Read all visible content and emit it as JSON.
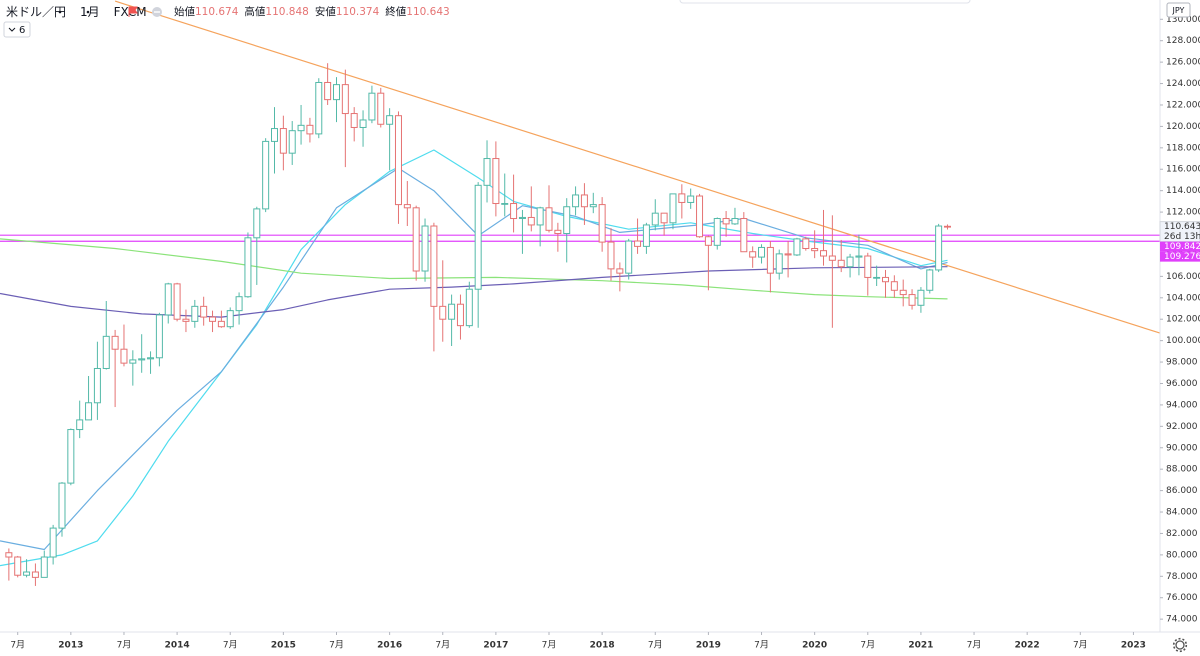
{
  "header": {
    "symbol": "米ドル／円",
    "timeframe": "1月",
    "source": "FXCM",
    "ohlc_labels": [
      "始値",
      "高値",
      "安値",
      "終値"
    ],
    "indicator_count": 6
  },
  "chart_data": {
    "type": "candlestick",
    "currency": "JPY",
    "up_color": "#53b9a8",
    "down_color": "#e57373",
    "categories": [
      "2012-06",
      "2012-07",
      "2012-08",
      "2012-09",
      "2012-10",
      "2012-11",
      "2012-12",
      "2013-01",
      "2013-02",
      "2013-03",
      "2013-04",
      "2013-05",
      "2013-06",
      "2013-07",
      "2013-08",
      "2013-09",
      "2013-10",
      "2013-11",
      "2013-12",
      "2014-01",
      "2014-02",
      "2014-03",
      "2014-04",
      "2014-05",
      "2014-06",
      "2014-07",
      "2014-08",
      "2014-09",
      "2014-10",
      "2014-11",
      "2014-12",
      "2015-01",
      "2015-02",
      "2015-03",
      "2015-04",
      "2015-05",
      "2015-06",
      "2015-07",
      "2015-08",
      "2015-09",
      "2015-10",
      "2015-11",
      "2015-12",
      "2016-01",
      "2016-02",
      "2016-03",
      "2016-04",
      "2016-05",
      "2016-06",
      "2016-07",
      "2016-08",
      "2016-09",
      "2016-10",
      "2016-11",
      "2016-12",
      "2017-01",
      "2017-02",
      "2017-03",
      "2017-04",
      "2017-05",
      "2017-06",
      "2017-07",
      "2017-08",
      "2017-09",
      "2017-10",
      "2017-11",
      "2017-12",
      "2018-01",
      "2018-02",
      "2018-03",
      "2018-04",
      "2018-05",
      "2018-06",
      "2018-07",
      "2018-08",
      "2018-09",
      "2018-10",
      "2018-11",
      "2018-12",
      "2019-01",
      "2019-02",
      "2019-03",
      "2019-04",
      "2019-05",
      "2019-06",
      "2019-07",
      "2019-08",
      "2019-09",
      "2019-10",
      "2019-11",
      "2019-12",
      "2020-01",
      "2020-02",
      "2020-03",
      "2020-04",
      "2020-05",
      "2020-06",
      "2020-07",
      "2020-08",
      "2020-09",
      "2020-10",
      "2020-11",
      "2020-12",
      "2021-01",
      "2021-02",
      "2021-03",
      "2021-04"
    ],
    "open": [
      80.2,
      79.8,
      78.1,
      78.4,
      77.9,
      79.8,
      82.5,
      86.7,
      91.7,
      92.6,
      94.2,
      97.4,
      100.4,
      99.2,
      97.9,
      98.2,
      98.3,
      98.4,
      102.4,
      105.3,
      102.0,
      101.8,
      103.2,
      102.2,
      101.8,
      101.3,
      102.8,
      104.1,
      109.6,
      112.3,
      118.6,
      119.8,
      117.5,
      119.6,
      120.1,
      119.3,
      124.1,
      122.5,
      123.9,
      121.2,
      119.9,
      120.6,
      123.1,
      120.2,
      121.0,
      112.7,
      112.4,
      106.5,
      110.7,
      103.2,
      102.0,
      103.4,
      101.4,
      104.8,
      114.5,
      117.0,
      112.8,
      112.8,
      111.4,
      111.5,
      110.8,
      112.4,
      110.3,
      110.0,
      112.5,
      113.6,
      112.5,
      112.7,
      109.2,
      106.7,
      106.3,
      109.3,
      108.8,
      110.8,
      111.9,
      111.0,
      113.7,
      112.9,
      113.5,
      109.7,
      108.9,
      111.4,
      110.9,
      111.4,
      108.3,
      107.8,
      108.7,
      106.3,
      108.1,
      108.0,
      109.5,
      108.6,
      108.4,
      107.9,
      107.5,
      106.9,
      107.8,
      107.9,
      105.9,
      105.9,
      105.5,
      104.7,
      104.3,
      103.3,
      104.7,
      106.6,
      110.674
    ],
    "high": [
      80.6,
      79.9,
      79.6,
      79.2,
      80.4,
      82.8,
      86.8,
      91.8,
      94.4,
      96.7,
      99.9,
      103.7,
      101.0,
      101.5,
      99.1,
      100.6,
      99.0,
      102.6,
      105.4,
      105.4,
      102.9,
      103.8,
      104.1,
      102.8,
      102.8,
      103.1,
      104.5,
      110.1,
      112.5,
      118.9,
      121.8,
      121.0,
      120.5,
      122.0,
      120.8,
      124.5,
      125.9,
      124.6,
      125.3,
      121.8,
      121.5,
      123.8,
      123.6,
      121.7,
      121.4,
      114.9,
      112.6,
      111.4,
      111.0,
      107.5,
      104.3,
      104.3,
      105.5,
      114.8,
      118.7,
      118.6,
      115.6,
      115.5,
      112.2,
      114.4,
      112.5,
      114.5,
      111.0,
      113.3,
      114.4,
      114.7,
      113.8,
      113.4,
      110.5,
      107.3,
      109.5,
      111.4,
      111.0,
      113.2,
      111.9,
      113.7,
      114.6,
      114.2,
      113.7,
      109.8,
      111.5,
      112.1,
      112.4,
      112.0,
      108.8,
      109.0,
      109.3,
      108.5,
      109.3,
      109.6,
      109.7,
      110.3,
      112.2,
      111.7,
      109.4,
      108.1,
      109.9,
      108.2,
      107.0,
      106.6,
      106.1,
      105.7,
      104.8,
      105.0,
      106.7,
      110.9,
      110.848
    ],
    "low": [
      77.6,
      77.9,
      77.9,
      77.1,
      77.9,
      79.1,
      81.7,
      86.5,
      90.9,
      92.6,
      92.6,
      97.3,
      93.8,
      97.6,
      95.8,
      97.0,
      96.9,
      97.6,
      101.6,
      101.8,
      100.8,
      101.2,
      101.4,
      100.8,
      101.2,
      101.1,
      101.5,
      104.0,
      105.2,
      112.0,
      115.6,
      115.9,
      116.4,
      118.3,
      118.5,
      118.9,
      122.0,
      120.4,
      116.2,
      118.6,
      118.1,
      120.3,
      119.9,
      115.9,
      110.9,
      110.7,
      105.6,
      105.5,
      99.0,
      99.9,
      99.5,
      100.1,
      101.2,
      101.2,
      112.9,
      111.6,
      111.6,
      110.1,
      108.1,
      110.2,
      108.8,
      110.1,
      108.3,
      107.3,
      111.7,
      110.8,
      111.9,
      108.3,
      105.6,
      104.6,
      105.7,
      108.1,
      108.1,
      110.3,
      109.8,
      110.4,
      111.4,
      112.3,
      109.6,
      104.7,
      108.5,
      109.7,
      110.8,
      108.3,
      106.8,
      107.2,
      104.5,
      105.7,
      105.9,
      107.9,
      108.4,
      107.7,
      107.0,
      101.2,
      106.4,
      105.9,
      106.1,
      104.2,
      105.1,
      104.0,
      104.0,
      103.2,
      102.9,
      102.6,
      104.4,
      106.4,
      110.374
    ],
    "close": [
      79.8,
      78.1,
      78.4,
      77.9,
      79.8,
      82.5,
      86.7,
      91.7,
      92.6,
      94.2,
      97.4,
      100.4,
      99.2,
      97.9,
      98.2,
      98.3,
      98.4,
      102.4,
      105.3,
      102.0,
      101.8,
      103.2,
      102.2,
      101.8,
      101.3,
      102.8,
      104.1,
      109.6,
      112.3,
      118.6,
      119.8,
      117.5,
      119.6,
      120.1,
      119.3,
      124.1,
      122.5,
      123.9,
      121.2,
      119.9,
      120.6,
      123.1,
      120.2,
      121.0,
      112.7,
      112.4,
      106.5,
      110.7,
      103.2,
      102.0,
      103.4,
      101.4,
      104.8,
      114.5,
      117.0,
      112.8,
      112.8,
      111.4,
      111.5,
      110.8,
      112.4,
      110.3,
      110.0,
      112.5,
      113.6,
      112.5,
      112.7,
      109.2,
      106.7,
      106.3,
      109.3,
      108.8,
      110.8,
      111.9,
      111.0,
      113.7,
      112.9,
      113.5,
      109.7,
      108.9,
      111.4,
      110.9,
      111.4,
      108.3,
      107.8,
      108.7,
      106.3,
      108.1,
      108.0,
      109.5,
      108.6,
      108.4,
      107.9,
      107.5,
      106.9,
      107.8,
      107.9,
      105.9,
      105.9,
      105.5,
      104.7,
      104.3,
      103.3,
      104.7,
      106.6,
      110.7,
      110.643
    ],
    "lines": [
      {
        "color": "#4fdcee",
        "x": [
          "2012-05",
          "2012-12",
          "2013-04",
          "2013-08",
          "2013-12",
          "2014-06",
          "2014-10",
          "2015-03",
          "2015-08",
          "2016-01",
          "2016-06",
          "2016-11",
          "2017-03",
          "2017-09",
          "2018-04",
          "2018-11",
          "2019-06",
          "2019-12",
          "2020-07",
          "2021-01",
          "2021-04"
        ],
        "values": [
          79.0,
          80.0,
          81.3,
          85.5,
          90.6,
          97.1,
          101.5,
          108.5,
          112.7,
          115.8,
          117.8,
          115.2,
          113.0,
          111.6,
          110.4,
          111.0,
          110.0,
          109.3,
          108.6,
          107.0,
          107.5
        ]
      },
      {
        "color": "#6aaee0",
        "x": [
          "2012-05",
          "2012-10",
          "2013-04",
          "2014-01",
          "2014-06",
          "2015-01",
          "2015-07",
          "2016-02",
          "2016-06",
          "2016-11",
          "2017-04",
          "2017-10",
          "2018-03",
          "2018-12",
          "2019-05",
          "2019-12",
          "2020-07",
          "2021-01",
          "2021-04"
        ],
        "values": [
          81.3,
          80.5,
          86.0,
          93.5,
          97.1,
          105.0,
          112.4,
          116.1,
          114.0,
          109.8,
          112.6,
          111.6,
          110.1,
          110.8,
          111.4,
          109.6,
          108.9,
          106.7,
          107.3
        ]
      },
      {
        "color": "#8be37a",
        "x": [
          "2012-05",
          "2013-06",
          "2014-06",
          "2015-03",
          "2016-01",
          "2017-01",
          "2018-01",
          "2018-10",
          "2019-06",
          "2020-01",
          "2020-07",
          "2021-04"
        ],
        "values": [
          109.5,
          108.6,
          107.4,
          106.3,
          105.8,
          105.9,
          105.6,
          105.2,
          104.7,
          104.3,
          104.1,
          103.9
        ]
      },
      {
        "color": "#6b5fb5",
        "x": [
          "2012-05",
          "2013-01",
          "2013-09",
          "2014-06",
          "2015-01",
          "2015-06",
          "2016-01",
          "2016-08",
          "2017-03",
          "2018-01",
          "2019-01",
          "2020-01",
          "2021-04"
        ],
        "values": [
          104.4,
          103.2,
          102.5,
          102.2,
          102.9,
          103.8,
          104.8,
          105.0,
          105.3,
          105.9,
          106.5,
          106.8,
          106.9
        ]
      }
    ],
    "trendline": {
      "color": "#f5a35c",
      "x": [
        "2013-06",
        "2023-04"
      ],
      "values": [
        131.7,
        100.7
      ]
    },
    "hlines": {
      "color": "#e040fb",
      "values": [
        109.842,
        109.276
      ]
    },
    "countdown": "26d 13h",
    "xlim": [
      "2012-05",
      "2023-04"
    ],
    "xticks": [
      {
        "value": "2012-07",
        "label": "7月"
      },
      {
        "value": "2013-01",
        "label": "2013"
      },
      {
        "value": "2013-07",
        "label": "7月"
      },
      {
        "value": "2014-01",
        "label": "2014"
      },
      {
        "value": "2014-07",
        "label": "7月"
      },
      {
        "value": "2015-01",
        "label": "2015"
      },
      {
        "value": "2015-07",
        "label": "7月"
      },
      {
        "value": "2016-01",
        "label": "2016"
      },
      {
        "value": "2016-07",
        "label": "7月"
      },
      {
        "value": "2017-01",
        "label": "2017"
      },
      {
        "value": "2017-07",
        "label": "7月"
      },
      {
        "value": "2018-01",
        "label": "2018"
      },
      {
        "value": "2018-07",
        "label": "7月"
      },
      {
        "value": "2019-01",
        "label": "2019"
      },
      {
        "value": "2019-07",
        "label": "7月"
      },
      {
        "value": "2020-01",
        "label": "2020"
      },
      {
        "value": "2020-07",
        "label": "7月"
      },
      {
        "value": "2021-01",
        "label": "2021"
      },
      {
        "value": "2021-07",
        "label": "7月"
      },
      {
        "value": "2022-01",
        "label": "2022"
      },
      {
        "value": "2022-07",
        "label": "7月"
      },
      {
        "value": "2023-01",
        "label": "2023"
      }
    ],
    "ylim": [
      72.8,
      131.8
    ],
    "yticks": [
      {
        "value": 130,
        "label": "130.000"
      },
      {
        "value": 128,
        "label": "128.000"
      },
      {
        "value": 126,
        "label": "126.000"
      },
      {
        "value": 124,
        "label": "124.000"
      },
      {
        "value": 122,
        "label": "122.000"
      },
      {
        "value": 120,
        "label": "120.000"
      },
      {
        "value": 118,
        "label": "118.000"
      },
      {
        "value": 116,
        "label": "116.000"
      },
      {
        "value": 114,
        "label": "114.000"
      },
      {
        "value": 112,
        "label": "112.000"
      },
      {
        "value": 110,
        "label": "110.000"
      },
      {
        "value": 108,
        "label": "108.000"
      },
      {
        "value": 106,
        "label": "106.000"
      },
      {
        "value": 104,
        "label": "104.000"
      },
      {
        "value": 102,
        "label": "102.000"
      },
      {
        "value": 100,
        "label": "100.000"
      },
      {
        "value": 98,
        "label": "98.000"
      },
      {
        "value": 96,
        "label": "96.000"
      },
      {
        "value": 94,
        "label": "94.000"
      },
      {
        "value": 92,
        "label": "92.000"
      },
      {
        "value": 90,
        "label": "90.000"
      },
      {
        "value": 88,
        "label": "88.000"
      },
      {
        "value": 86,
        "label": "86.000"
      },
      {
        "value": 84,
        "label": "84.000"
      },
      {
        "value": 82,
        "label": "82.000"
      },
      {
        "value": 80,
        "label": "80.000"
      },
      {
        "value": 78,
        "label": "78.000"
      },
      {
        "value": 76,
        "label": "76.000"
      },
      {
        "value": 74,
        "label": "74.000"
      }
    ]
  }
}
